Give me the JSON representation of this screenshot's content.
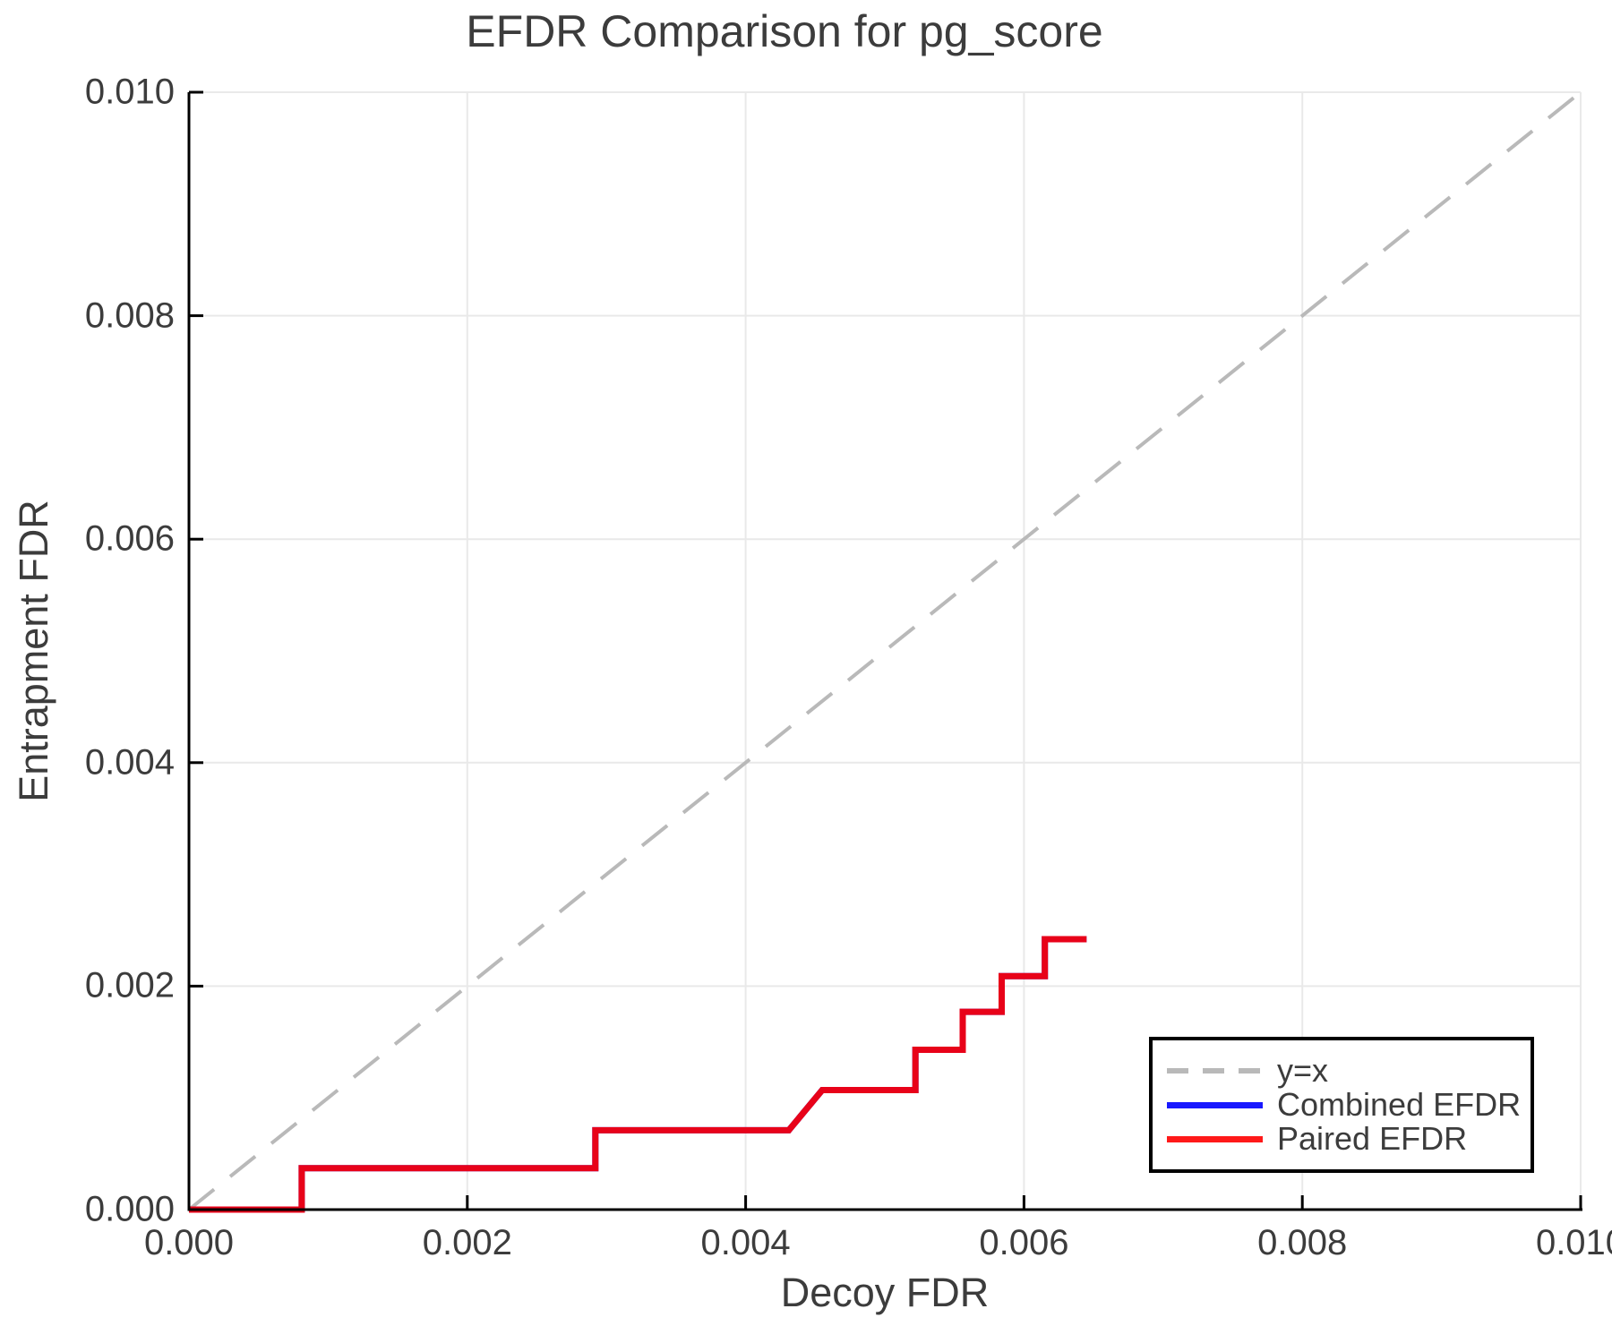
{
  "chart_data": {
    "type": "line",
    "title": "EFDR Comparison for pg_score",
    "xlabel": "Decoy FDR",
    "ylabel": "Entrapment FDR",
    "xlim": [
      0.0,
      0.01
    ],
    "ylim": [
      0.0,
      0.01
    ],
    "x_ticks": {
      "values": [
        0.0,
        0.002,
        0.004,
        0.006,
        0.008,
        0.01
      ],
      "labels": [
        "0.000",
        "0.002",
        "0.004",
        "0.006",
        "0.008",
        "0.010"
      ]
    },
    "y_ticks": {
      "values": [
        0.0,
        0.002,
        0.004,
        0.006,
        0.008,
        0.01
      ],
      "labels": [
        "0.000",
        "0.002",
        "0.004",
        "0.006",
        "0.008",
        "0.010"
      ]
    },
    "grid": true,
    "colors": {
      "grid": "#e9e9e9",
      "spine": "#000000",
      "text": "#3c3c3c",
      "reference": "#b9b9b9",
      "combined": "#0000ff",
      "paired": "#ff0000"
    },
    "legend": {
      "position": "lower right",
      "items": [
        {
          "label": "y=x",
          "color": "#b9b9b9",
          "dashed": true,
          "alpha": 1.0
        },
        {
          "label": "Combined EFDR",
          "color": "#0000ff",
          "dashed": false,
          "alpha": 0.9
        },
        {
          "label": "Paired EFDR",
          "color": "#ff0000",
          "dashed": false,
          "alpha": 0.9
        }
      ]
    },
    "series": [
      {
        "name": "y=x",
        "style": "dashed",
        "color": "#b9b9b9",
        "alpha": 1.0,
        "width": 4,
        "points": [
          [
            0.0,
            0.0
          ],
          [
            0.01,
            0.01
          ]
        ]
      },
      {
        "name": "Combined EFDR",
        "style": "solid",
        "color": "#0000ff",
        "alpha": 0.9,
        "width": 7,
        "overlaps_paired_efdr": true,
        "points": [
          [
            0.0,
            0.0
          ],
          [
            0.00081,
            0.0
          ],
          [
            0.00081,
            0.00037
          ],
          [
            0.00292,
            0.00037
          ],
          [
            0.00292,
            0.00071
          ],
          [
            0.00431,
            0.00071
          ],
          [
            0.00455,
            0.00107
          ],
          [
            0.00522,
            0.00107
          ],
          [
            0.00522,
            0.00143
          ],
          [
            0.00556,
            0.00143
          ],
          [
            0.00556,
            0.00177
          ],
          [
            0.00584,
            0.00177
          ],
          [
            0.00584,
            0.00209
          ],
          [
            0.00615,
            0.00209
          ],
          [
            0.00615,
            0.00242
          ],
          [
            0.00645,
            0.00242
          ]
        ]
      },
      {
        "name": "Paired EFDR",
        "style": "solid",
        "color": "#ff0000",
        "alpha": 0.9,
        "width": 7,
        "points": [
          [
            0.0,
            0.0
          ],
          [
            0.00081,
            0.0
          ],
          [
            0.00081,
            0.00037
          ],
          [
            0.00292,
            0.00037
          ],
          [
            0.00292,
            0.00071
          ],
          [
            0.00431,
            0.00071
          ],
          [
            0.00455,
            0.00107
          ],
          [
            0.00522,
            0.00107
          ],
          [
            0.00522,
            0.00143
          ],
          [
            0.00556,
            0.00143
          ],
          [
            0.00556,
            0.00177
          ],
          [
            0.00584,
            0.00177
          ],
          [
            0.00584,
            0.00209
          ],
          [
            0.00615,
            0.00209
          ],
          [
            0.00615,
            0.00242
          ],
          [
            0.00645,
            0.00242
          ]
        ]
      }
    ]
  }
}
